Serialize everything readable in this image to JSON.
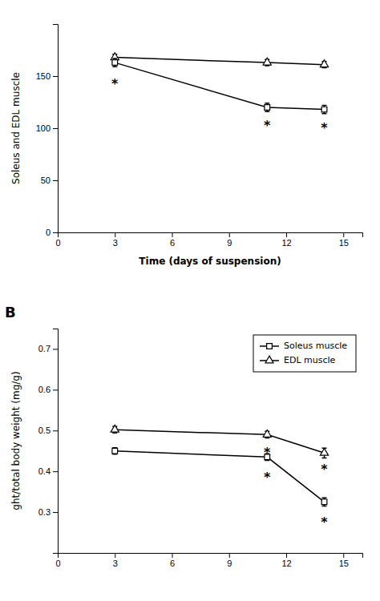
{
  "chart_data": [
    {
      "type": "line",
      "xlabel": "Time (days of suspension)",
      "ylabel": "Soleus and EDL muscle",
      "x": [
        3,
        11,
        14
      ],
      "xlim": [
        0,
        16
      ],
      "xticks": [
        0,
        3,
        6,
        9,
        12,
        15
      ],
      "ylim": [
        0,
        200
      ],
      "yticks": [
        0,
        50,
        100,
        150
      ],
      "grid": false,
      "series": [
        {
          "color": "#000000",
          "marker": "triangle",
          "values": [
            168,
            163,
            161
          ],
          "errors": [
            3,
            3,
            3
          ]
        },
        {
          "color": "#000000",
          "marker": "square",
          "values": [
            163,
            120,
            118
          ],
          "errors": [
            4,
            4,
            4
          ]
        }
      ],
      "annotations": [
        {
          "text": "*",
          "x": 3,
          "y": 150
        },
        {
          "text": "*",
          "x": 11,
          "y": 110
        },
        {
          "text": "*",
          "x": 14,
          "y": 108
        }
      ]
    },
    {
      "type": "line",
      "title": "B",
      "ylabel": "ght/total body weight (mg/g)",
      "x": [
        3,
        11,
        14
      ],
      "xlim": [
        0,
        16
      ],
      "xticks": [
        0,
        3,
        6,
        9,
        12,
        15
      ],
      "ylim": [
        0.2,
        0.75
      ],
      "yticks": [
        0.3,
        0.4,
        0.5,
        0.6,
        0.7
      ],
      "grid": false,
      "legend": "upper right",
      "series": [
        {
          "name": "Soleus muscle",
          "color": "#000000",
          "marker": "square",
          "values": [
            0.45,
            0.435,
            0.325
          ],
          "errors": [
            0.008,
            0.008,
            0.01
          ]
        },
        {
          "name": "EDL muscle",
          "color": "#000000",
          "marker": "triangle",
          "values": [
            0.502,
            0.49,
            0.445
          ],
          "errors": [
            0.008,
            0.008,
            0.012
          ]
        }
      ],
      "annotations": [
        {
          "text": "*",
          "x": 11,
          "y": 0.465
        },
        {
          "text": "*",
          "x": 14,
          "y": 0.423
        },
        {
          "text": "*",
          "x": 11,
          "y": 0.405
        },
        {
          "text": "*",
          "x": 14,
          "y": 0.295
        }
      ]
    }
  ]
}
